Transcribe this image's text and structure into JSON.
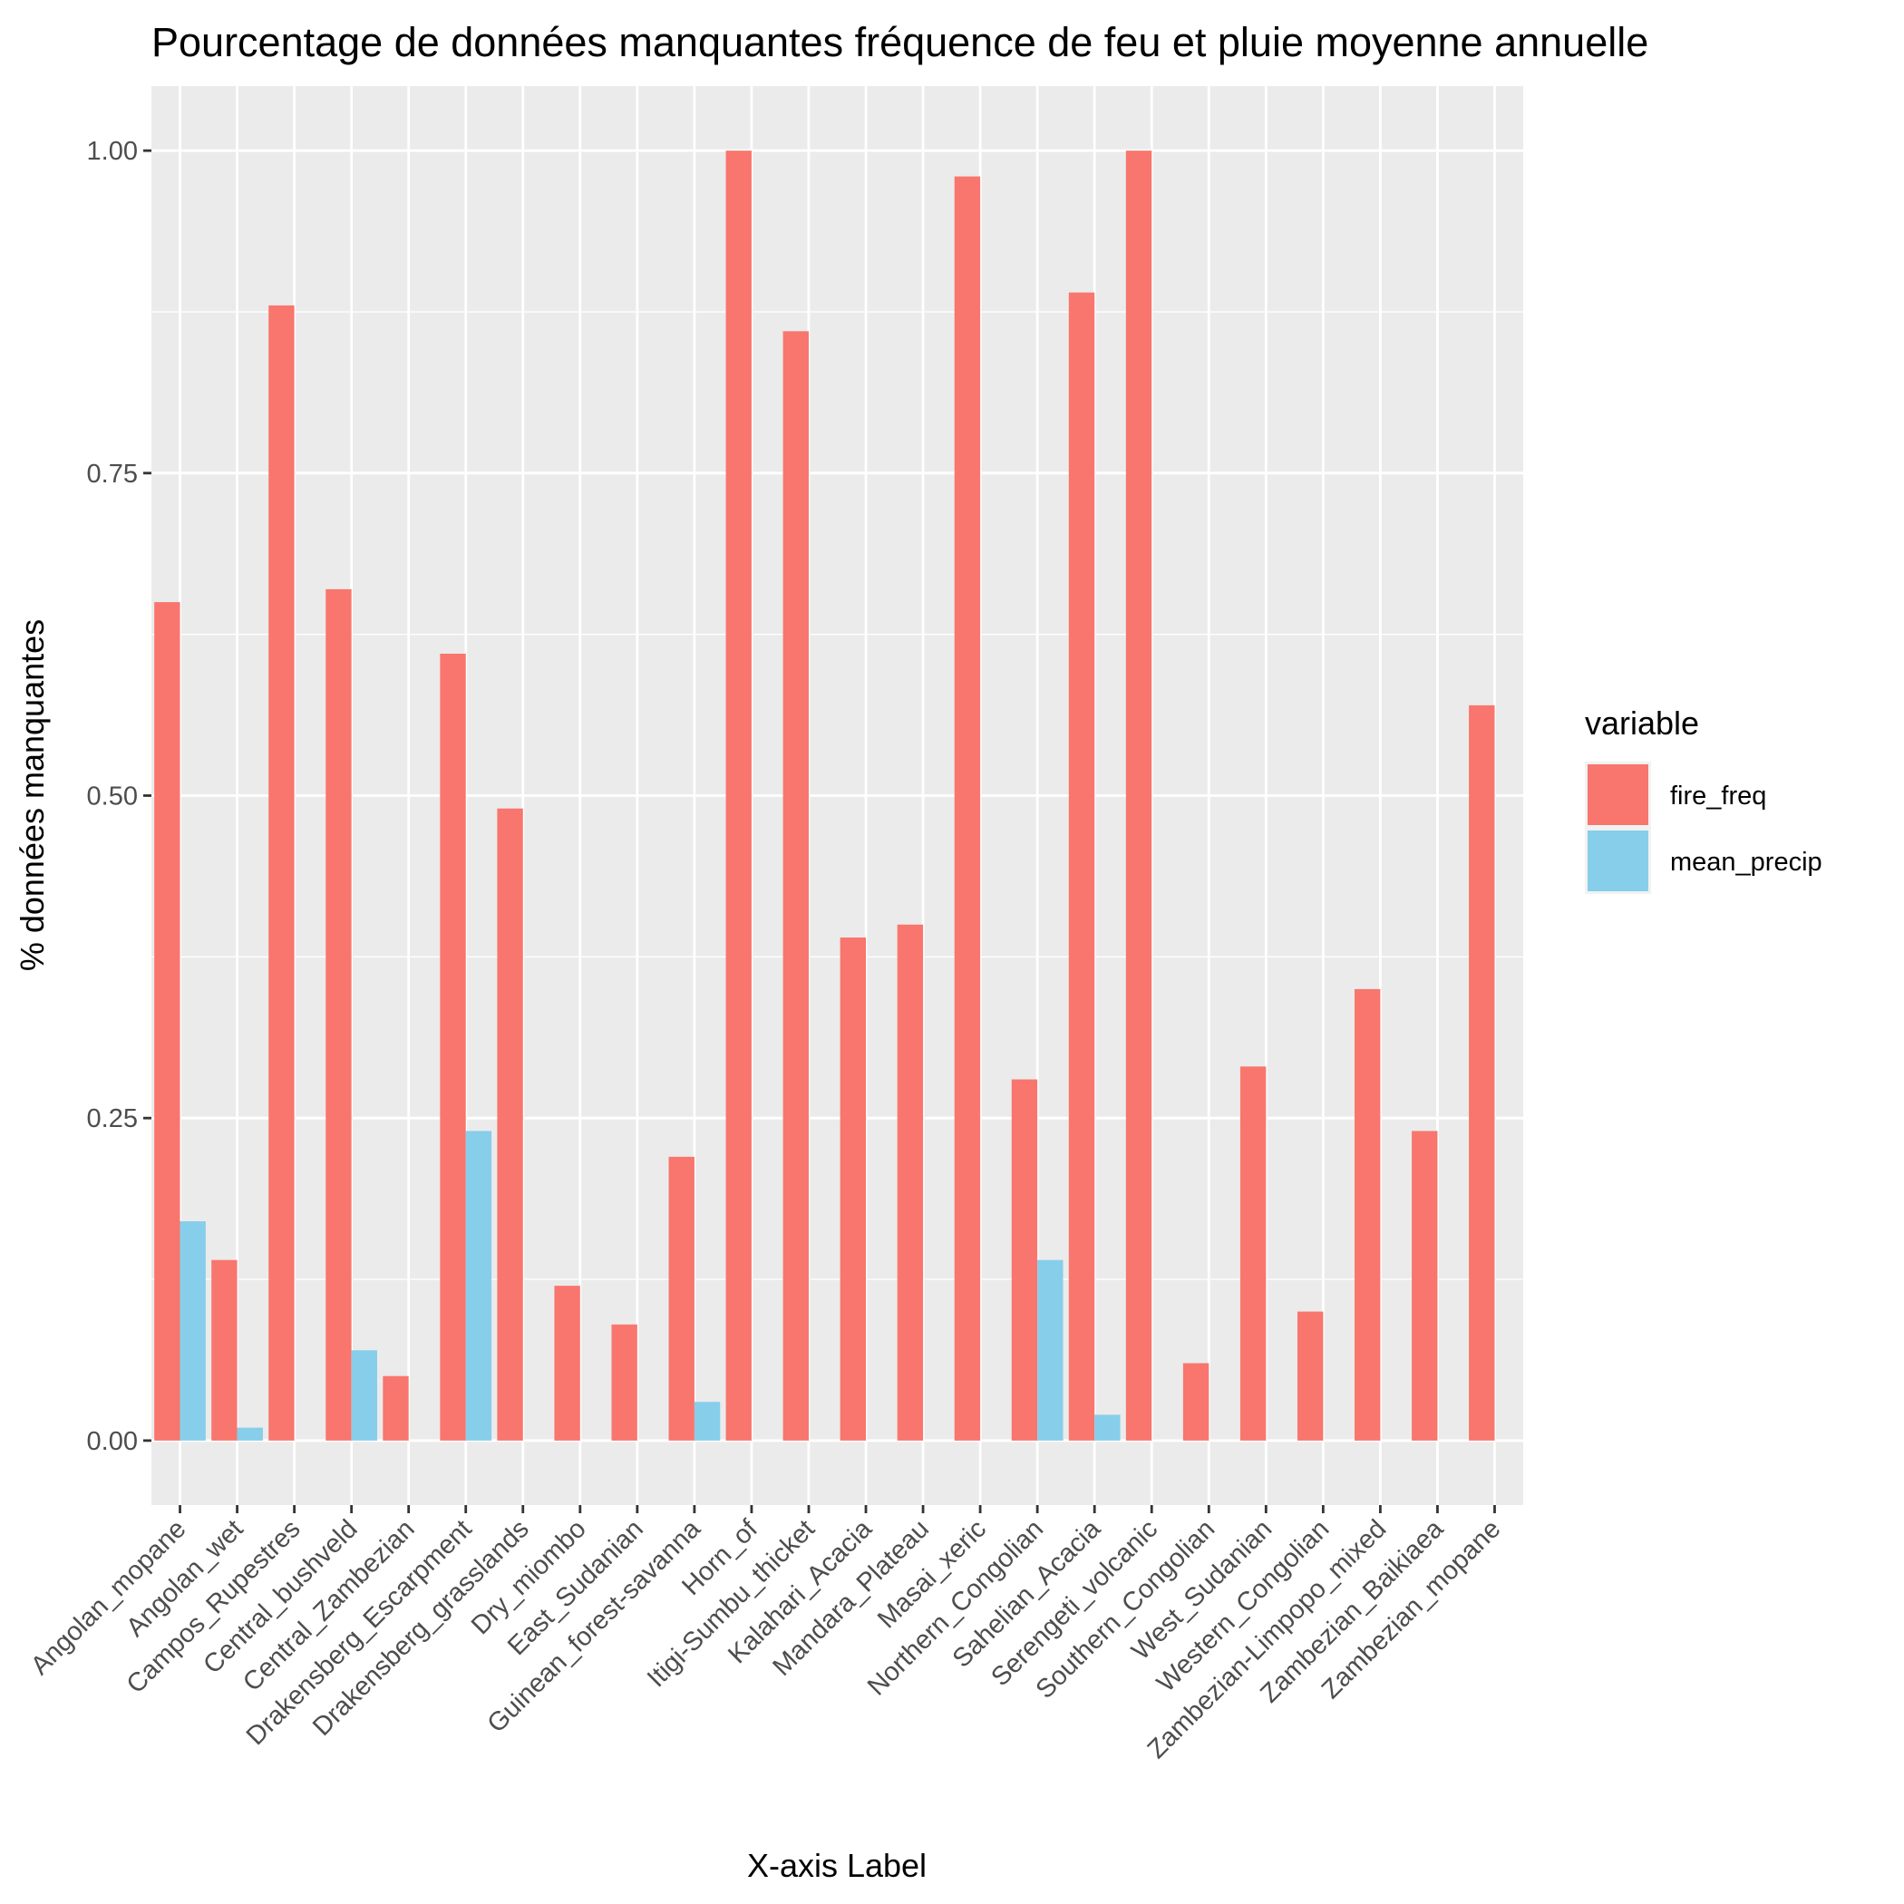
{
  "chart_data": {
    "type": "bar",
    "title": "Pourcentage de données manquantes fréquence de feu et pluie moyenne annuelle",
    "xlabel": "X-axis Label",
    "ylabel": "% données manquantes",
    "ylim": [
      -0.05,
      1.05
    ],
    "yticks": [
      0.0,
      0.25,
      0.5,
      0.75,
      1.0
    ],
    "ytick_labels": [
      "0.00",
      "0.25",
      "0.50",
      "0.75",
      "1.00"
    ],
    "grid": true,
    "legend": {
      "title": "variable",
      "position": "right"
    },
    "categories": [
      "Angolan_mopane",
      "Angolan_wet",
      "Campos_Rupestres",
      "Central_bushveld",
      "Central_Zambezian",
      "Drakensberg_Escarpment",
      "Drakensberg_grasslands",
      "Dry_miombo",
      "East_Sudanian",
      "Guinean_forest-savanna",
      "Horn_of",
      "Itigi-Sumbu_thicket",
      "Kalahari_Acacia",
      "Mandara_Plateau",
      "Masai_xeric",
      "Northern_Congolian",
      "Sahelian_Acacia",
      "Serengeti_volcanic",
      "Southern_Congolian",
      "West_Sudanian",
      "Western_Congolian",
      "Zambezian-Limpopo_mixed",
      "Zambezian_Baikiaea",
      "Zambezian_mopane"
    ],
    "series": [
      {
        "name": "fire_freq",
        "color": "#F8766D",
        "values": [
          0.65,
          0.14,
          0.88,
          0.66,
          0.05,
          0.61,
          0.49,
          0.12,
          0.09,
          0.22,
          1.0,
          0.86,
          0.39,
          0.4,
          0.98,
          0.28,
          0.89,
          1.0,
          0.06,
          0.29,
          0.1,
          0.35,
          0.24,
          0.57
        ]
      },
      {
        "name": "mean_precip",
        "color": "#87CEEB",
        "values": [
          0.17,
          0.01,
          null,
          0.07,
          null,
          0.24,
          null,
          null,
          null,
          0.03,
          null,
          null,
          null,
          null,
          null,
          0.14,
          0.02,
          null,
          null,
          null,
          null,
          null,
          null,
          null
        ]
      }
    ]
  }
}
